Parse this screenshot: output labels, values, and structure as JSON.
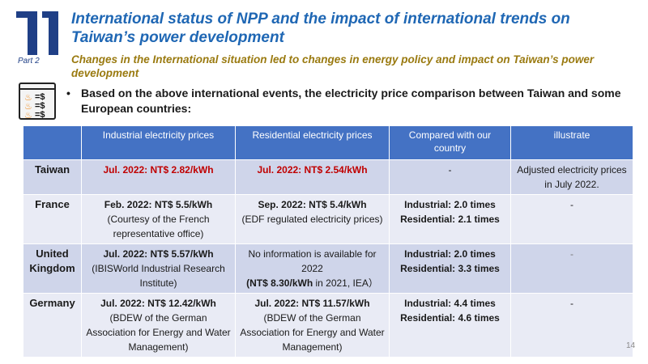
{
  "header": {
    "part_label": "Part 2",
    "title": "International status of NPP and the impact of international trends on Taiwan’s power development",
    "subtitle": "Changes in the International situation led to changes in energy policy and impact on Taiwan’s power development"
  },
  "bullet": {
    "marker": "•",
    "text": "Based on the above international events, the electricity price comparison between Taiwan and some European countries:"
  },
  "table": {
    "headers": [
      "",
      "Industrial electricity prices",
      "Residential electricity prices",
      "Compared with our country",
      "illustrate"
    ],
    "rows": [
      {
        "country": "Taiwan",
        "industrial": [
          "Jul. 2022: NT$ 2.82/kWh"
        ],
        "residential": [
          "Jul. 2022: NT$ 2.54/kWh"
        ],
        "compared": [
          "-"
        ],
        "illustrate": [
          "Adjusted electricity prices in July 2022."
        ]
      },
      {
        "country": "France",
        "industrial": [
          "Feb. 2022: NT$ 5.5/kWh",
          "(Courtesy of the French representative office)"
        ],
        "residential": [
          "Sep. 2022: NT$ 5.4/kWh",
          "(EDF regulated electricity prices)"
        ],
        "compared": [
          "Industrial: 2.0 times",
          "Residential: 2.1 times"
        ],
        "illustrate": [
          "-"
        ]
      },
      {
        "country": "United Kingdom",
        "industrial": [
          "Jul. 2022: NT$ 5.57/kWh",
          "(IBISWorld Industrial Research Institute)"
        ],
        "residential": [
          "No information is available for 2022",
          "(NT$ 8.30/kWh",
          " in 2021, IEA）"
        ],
        "compared": [
          "Industrial: 2.0 times",
          "Residential: 3.3 times"
        ],
        "illustrate": [
          "-"
        ]
      },
      {
        "country": "Germany",
        "industrial": [
          "Jul. 2022: NT$ 12.42/kWh",
          "(BDEW of the German Association for Energy and Water Management)"
        ],
        "residential": [
          "Jul. 2022: NT$ 11.57/kWh",
          "(BDEW of the German Association for Energy and Water Management)"
        ],
        "compared": [
          "Industrial: 4.4 times",
          "Residential: 4.6 times"
        ],
        "illustrate": [
          "-"
        ]
      }
    ]
  },
  "page_number": "14",
  "colors": {
    "title": "#1f67b4",
    "subtitle": "#9a7a10",
    "header_bg": "#4472c4",
    "row_odd": "#cfd5ea",
    "row_even": "#e9ebf5",
    "highlight": "#c00000"
  },
  "icons": {
    "section_logo": "part-number-logo",
    "price_icon": "fire-dollar-icon"
  }
}
